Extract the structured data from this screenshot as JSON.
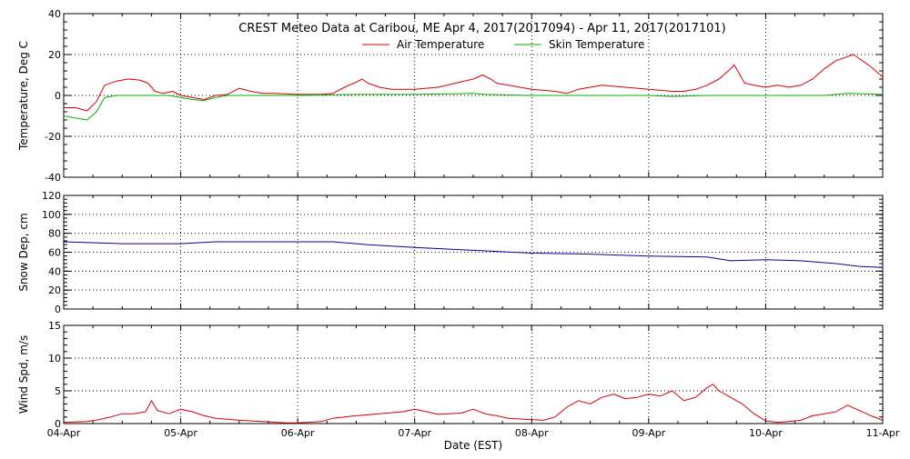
{
  "chart_data": {
    "type": "line",
    "title": "CREST Meteo Data at Caribou, ME   Apr  4, 2017(2017094) - Apr 11, 2017(2017101)",
    "xlabel": "Date (EST)",
    "x_tick_labels": [
      "04-Apr",
      "05-Apr",
      "06-Apr",
      "07-Apr",
      "08-Apr",
      "09-Apr",
      "10-Apr",
      "11-Apr"
    ],
    "x_range": [
      0,
      7
    ],
    "grid": true,
    "panels": [
      {
        "ylabel": "Temperature, Deg C",
        "ylim": [
          -40,
          40
        ],
        "y_ticks": [
          -40,
          -20,
          0,
          20,
          40
        ],
        "legend": "top-center",
        "series": [
          {
            "name": "Air Temperature",
            "color": "#d40000",
            "points": [
              [
                0,
                -6
              ],
              [
                0.1,
                -6
              ],
              [
                0.2,
                -7.5
              ],
              [
                0.28,
                -3
              ],
              [
                0.35,
                5
              ],
              [
                0.45,
                7
              ],
              [
                0.55,
                8
              ],
              [
                0.65,
                7.5
              ],
              [
                0.72,
                6
              ],
              [
                0.78,
                2
              ],
              [
                0.85,
                1
              ],
              [
                0.93,
                2
              ],
              [
                1.0,
                0
              ],
              [
                1.1,
                -1
              ],
              [
                1.2,
                -2
              ],
              [
                1.3,
                0
              ],
              [
                1.4,
                0.5
              ],
              [
                1.5,
                3.5
              ],
              [
                1.6,
                2
              ],
              [
                1.7,
                1
              ],
              [
                1.8,
                1
              ],
              [
                2.0,
                0.5
              ],
              [
                2.2,
                0.5
              ],
              [
                2.3,
                1
              ],
              [
                2.4,
                4
              ],
              [
                2.5,
                6.5
              ],
              [
                2.55,
                8
              ],
              [
                2.6,
                6
              ],
              [
                2.7,
                4
              ],
              [
                2.8,
                3
              ],
              [
                3.0,
                3
              ],
              [
                3.2,
                4
              ],
              [
                3.35,
                6
              ],
              [
                3.5,
                8
              ],
              [
                3.58,
                10
              ],
              [
                3.65,
                8
              ],
              [
                3.7,
                6
              ],
              [
                3.8,
                5
              ],
              [
                3.9,
                4
              ],
              [
                4.0,
                3
              ],
              [
                4.2,
                2
              ],
              [
                4.3,
                1
              ],
              [
                4.4,
                3
              ],
              [
                4.5,
                4
              ],
              [
                4.6,
                5
              ],
              [
                4.8,
                4
              ],
              [
                5.0,
                3
              ],
              [
                5.2,
                2
              ],
              [
                5.3,
                2
              ],
              [
                5.4,
                3
              ],
              [
                5.5,
                5
              ],
              [
                5.6,
                8
              ],
              [
                5.7,
                13
              ],
              [
                5.73,
                15
              ],
              [
                5.77,
                11
              ],
              [
                5.82,
                6
              ],
              [
                5.9,
                5
              ],
              [
                6.0,
                4
              ],
              [
                6.1,
                5
              ],
              [
                6.2,
                4
              ],
              [
                6.3,
                5
              ],
              [
                6.4,
                8
              ],
              [
                6.5,
                13
              ],
              [
                6.6,
                17
              ],
              [
                6.7,
                19
              ],
              [
                6.75,
                20
              ],
              [
                6.8,
                18
              ],
              [
                6.9,
                14
              ],
              [
                7.0,
                9
              ]
            ]
          },
          {
            "name": "Skin Temperature",
            "color": "#00b000",
            "points": [
              [
                0,
                -10
              ],
              [
                0.1,
                -11
              ],
              [
                0.2,
                -12
              ],
              [
                0.28,
                -8
              ],
              [
                0.35,
                -1
              ],
              [
                0.45,
                0
              ],
              [
                0.6,
                0
              ],
              [
                0.8,
                0
              ],
              [
                0.9,
                0
              ],
              [
                1.0,
                -1
              ],
              [
                1.1,
                -2
              ],
              [
                1.2,
                -2.5
              ],
              [
                1.3,
                -1
              ],
              [
                1.4,
                0
              ],
              [
                1.6,
                0
              ],
              [
                2.0,
                0
              ],
              [
                2.5,
                0.5
              ],
              [
                3.0,
                0.5
              ],
              [
                3.5,
                1
              ],
              [
                3.6,
                0.5
              ],
              [
                4.0,
                0
              ],
              [
                4.5,
                0
              ],
              [
                5.0,
                0
              ],
              [
                5.2,
                -0.5
              ],
              [
                5.5,
                0
              ],
              [
                6.0,
                0
              ],
              [
                6.5,
                0
              ],
              [
                6.7,
                1
              ],
              [
                7.0,
                0.5
              ]
            ]
          }
        ]
      },
      {
        "ylabel": "Snow Dep, cm",
        "ylim": [
          0,
          120
        ],
        "y_ticks": [
          0,
          20,
          40,
          60,
          80,
          100,
          120
        ],
        "series": [
          {
            "color": "#0000a0",
            "points": [
              [
                0,
                71
              ],
              [
                0.5,
                69
              ],
              [
                1.0,
                69
              ],
              [
                1.3,
                71
              ],
              [
                1.6,
                71
              ],
              [
                2.0,
                71
              ],
              [
                2.3,
                71
              ],
              [
                2.6,
                68
              ],
              [
                3.0,
                65
              ],
              [
                3.5,
                62
              ],
              [
                4.0,
                59
              ],
              [
                4.5,
                58
              ],
              [
                5.0,
                56
              ],
              [
                5.5,
                55
              ],
              [
                5.7,
                51
              ],
              [
                6.0,
                52
              ],
              [
                6.3,
                51
              ],
              [
                6.6,
                48
              ],
              [
                6.8,
                45
              ],
              [
                7.0,
                44
              ]
            ]
          }
        ]
      },
      {
        "ylabel": "Wind Spd, m/s",
        "ylim": [
          0,
          15
        ],
        "y_ticks": [
          0,
          5,
          10,
          15
        ],
        "series": [
          {
            "color": "#d40000",
            "points": [
              [
                0,
                0.2
              ],
              [
                0.2,
                0.3
              ],
              [
                0.3,
                0.6
              ],
              [
                0.4,
                1
              ],
              [
                0.5,
                1.5
              ],
              [
                0.6,
                1.5
              ],
              [
                0.7,
                1.8
              ],
              [
                0.75,
                3.5
              ],
              [
                0.8,
                2
              ],
              [
                0.9,
                1.5
              ],
              [
                1.0,
                2.2
              ],
              [
                1.1,
                1.8
              ],
              [
                1.2,
                1.2
              ],
              [
                1.3,
                0.8
              ],
              [
                1.5,
                0.5
              ],
              [
                1.7,
                0.3
              ],
              [
                1.9,
                0.1
              ],
              [
                2.0,
                0.1
              ],
              [
                2.2,
                0.3
              ],
              [
                2.3,
                0.8
              ],
              [
                2.5,
                1.2
              ],
              [
                2.7,
                1.5
              ],
              [
                2.9,
                1.8
              ],
              [
                3.0,
                2.2
              ],
              [
                3.1,
                1.8
              ],
              [
                3.2,
                1.4
              ],
              [
                3.4,
                1.6
              ],
              [
                3.5,
                2.2
              ],
              [
                3.6,
                1.5
              ],
              [
                3.7,
                1.2
              ],
              [
                3.8,
                0.8
              ],
              [
                4.0,
                0.6
              ],
              [
                4.1,
                0.5
              ],
              [
                4.2,
                1
              ],
              [
                4.3,
                2.5
              ],
              [
                4.4,
                3.5
              ],
              [
                4.5,
                3
              ],
              [
                4.6,
                4
              ],
              [
                4.7,
                4.5
              ],
              [
                4.8,
                3.8
              ],
              [
                4.9,
                4
              ],
              [
                5.0,
                4.5
              ],
              [
                5.1,
                4.2
              ],
              [
                5.2,
                5
              ],
              [
                5.3,
                3.5
              ],
              [
                5.4,
                4
              ],
              [
                5.5,
                5.5
              ],
              [
                5.55,
                6
              ],
              [
                5.6,
                5
              ],
              [
                5.7,
                4
              ],
              [
                5.8,
                3
              ],
              [
                5.9,
                1.5
              ],
              [
                6.0,
                0.4
              ],
              [
                6.1,
                0.2
              ],
              [
                6.2,
                0.3
              ],
              [
                6.3,
                0.5
              ],
              [
                6.4,
                1.2
              ],
              [
                6.5,
                1.5
              ],
              [
                6.6,
                1.8
              ],
              [
                6.7,
                2.8
              ],
              [
                6.8,
                2
              ],
              [
                6.9,
                1.2
              ],
              [
                7.0,
                0.5
              ]
            ]
          }
        ]
      }
    ]
  }
}
